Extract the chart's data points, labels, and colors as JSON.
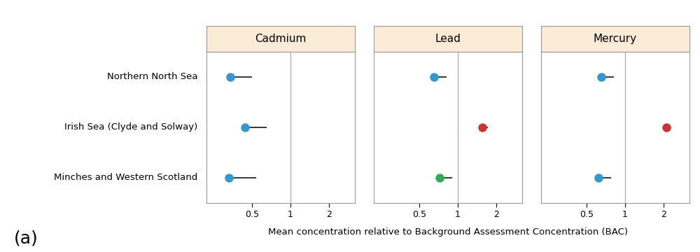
{
  "regions": [
    "Northern North Sea",
    "Irish Sea (Clyde and Solway)",
    "Minches and Western Scotland"
  ],
  "panels": [
    {
      "title": "Cadmium",
      "means": [
        0.34,
        0.44,
        0.33
      ],
      "ci_upper": [
        0.5,
        0.65,
        0.54
      ],
      "colors": [
        "#3399CC",
        "#3399CC",
        "#3399CC"
      ]
    },
    {
      "title": "Lead",
      "means": [
        0.65,
        1.55,
        0.72
      ],
      "ci_upper": [
        0.82,
        1.72,
        0.9
      ],
      "colors": [
        "#3399CC",
        "#CC3333",
        "#33AA55"
      ]
    },
    {
      "title": "Mercury",
      "means": [
        0.65,
        2.1,
        0.62
      ],
      "ci_upper": [
        0.82,
        2.28,
        0.78
      ],
      "colors": [
        "#3399CC",
        "#CC3333",
        "#3399CC"
      ]
    }
  ],
  "xlabel": "Mean concentration relative to Background Assessment Concentration (BAC)",
  "xticks": [
    0.5,
    1,
    2
  ],
  "bac_line": 1,
  "header_color": "#FAEBD7",
  "header_edge": "#999999",
  "panel_edge": "#999999",
  "annotation": "(a)",
  "annotation_fontsize": 18,
  "title_fontsize": 11,
  "label_fontsize": 9.5,
  "tick_fontsize": 9
}
